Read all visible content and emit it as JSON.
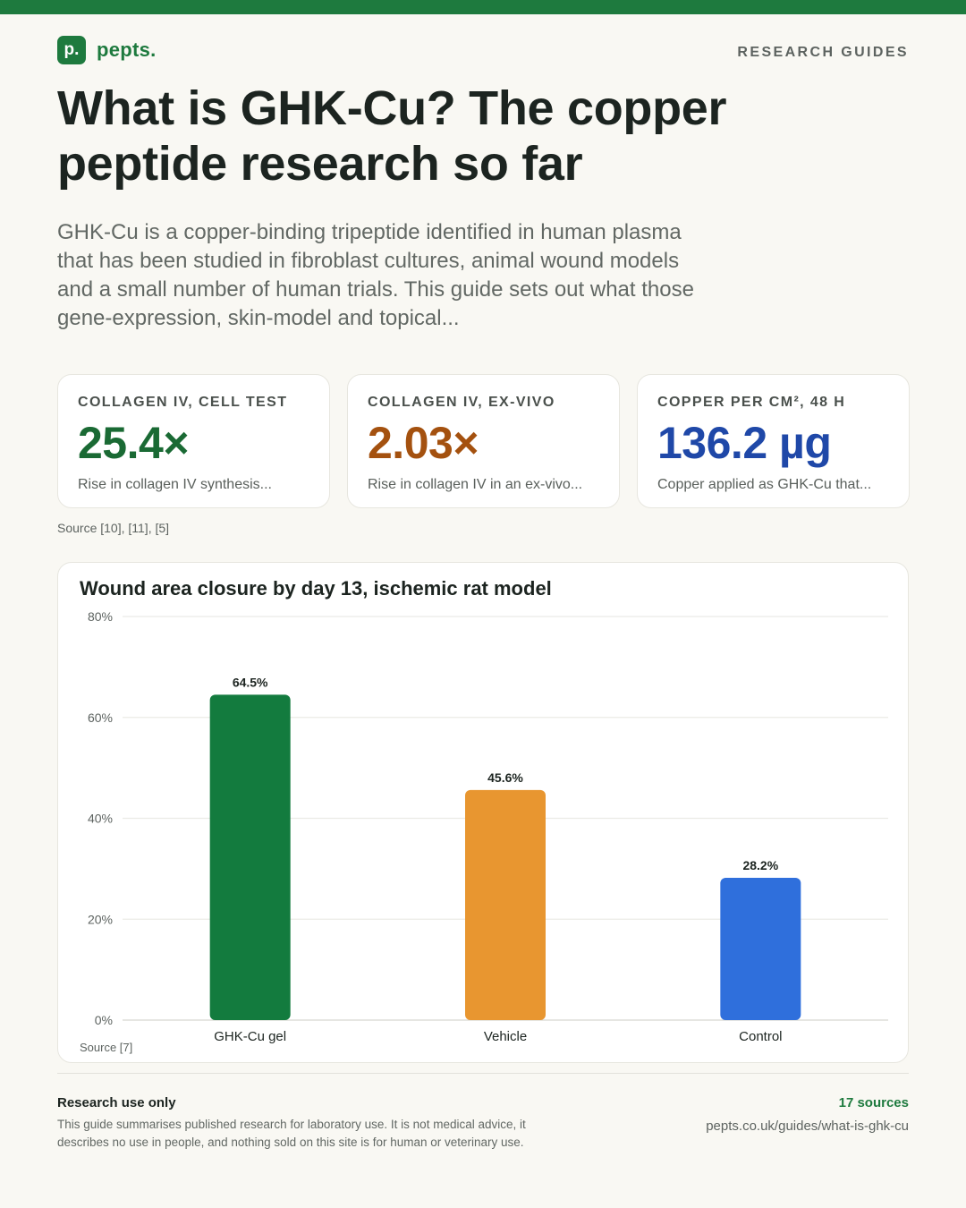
{
  "brand": {
    "logo_letter": "p.",
    "name": "pepts."
  },
  "header": {
    "section": "RESEARCH GUIDES"
  },
  "title": "What is GHK-Cu? The copper peptide research so far",
  "intro": "GHK-Cu is a copper-binding tripeptide identified in human plasma that has been studied in fibroblast cultures, animal wound models and a small number of human trials. This guide sets out what those gene-expression, skin-model and topical...",
  "stats": [
    {
      "label": "COLLAGEN IV, CELL TEST",
      "value": "25.4×",
      "desc": "Rise in collagen IV synthesis...",
      "color": "#1a6a34"
    },
    {
      "label": "COLLAGEN IV, EX-VIVO",
      "value": "2.03×",
      "desc": "Rise in collagen IV in an ex-vivo...",
      "color": "#a4510f"
    },
    {
      "label": "COPPER PER CM², 48 H",
      "value": "136.2 µg",
      "desc": "Copper applied as GHK-Cu that...",
      "color": "#1f48a8"
    }
  ],
  "stats_source": "Source [10], [11], [5]",
  "chart_data": {
    "type": "bar",
    "title": "Wound area closure by day 13, ischemic rat model",
    "categories": [
      "GHK-Cu gel",
      "Vehicle",
      "Control"
    ],
    "values": [
      64.5,
      45.6,
      28.2
    ],
    "value_labels": [
      "64.5%",
      "45.6%",
      "28.2%"
    ],
    "colors": [
      "#137b3e",
      "#e89630",
      "#2f6fdc"
    ],
    "y_ticks": [
      0,
      20,
      40,
      60,
      80
    ],
    "y_tick_labels": [
      "0%",
      "20%",
      "40%",
      "60%",
      "80%"
    ],
    "ylim": [
      0,
      80
    ],
    "grid": true,
    "source": "Source [7]"
  },
  "footer": {
    "title": "Research use only",
    "text": "This guide summarises published research for laboratory use. It is not medical advice, it describes no use in people, and nothing sold on this site is for human or veterinary use.",
    "sources_count": "17 sources",
    "url": "pepts.co.uk/guides/what-is-ghk-cu"
  }
}
